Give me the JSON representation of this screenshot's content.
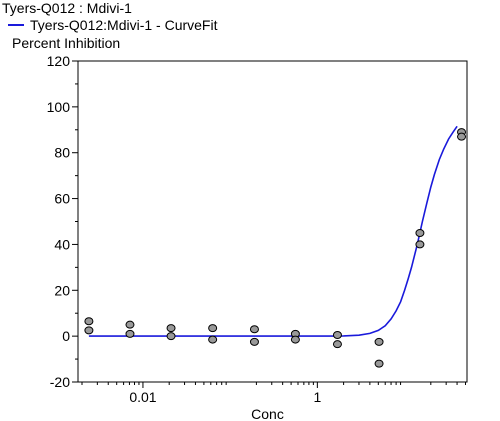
{
  "chart_data": {
    "type": "scatter",
    "title": "Tyers-Q012  :  Mdivi-1",
    "legend": [
      {
        "label": "Tyers-Q012:Mdivi-1 - CurveFit",
        "color": "#1a1adb"
      }
    ],
    "ylabel": "Percent  Inhibition",
    "xlabel": "Conc",
    "x_scale": "log",
    "xlim": [
      0.0018,
      52
    ],
    "ylim": [
      -20,
      120
    ],
    "x_ticks": [
      {
        "value": 0.01,
        "label": "0.01"
      },
      {
        "value": 1,
        "label": "1"
      }
    ],
    "y_ticks": [
      {
        "value": 120,
        "label": "120"
      },
      {
        "value": 100,
        "label": "100"
      },
      {
        "value": 80,
        "label": "80"
      },
      {
        "value": 60,
        "label": "60"
      },
      {
        "value": 40,
        "label": "40"
      },
      {
        "value": 20,
        "label": "20"
      },
      {
        "value": 0,
        "label": "0"
      },
      {
        "value": -20,
        "label": "-20"
      }
    ],
    "series": [
      {
        "name": "Tyers-Q012:Mdivi-1 - CurveFit",
        "kind": "fit-curve",
        "color": "#1a1adb",
        "x": [
          0.0024,
          0.005,
          0.01,
          0.05,
          0.2,
          0.5,
          1,
          1.5,
          2,
          3,
          4,
          5,
          6,
          7,
          8,
          9,
          10,
          11,
          12,
          14,
          16,
          18,
          20,
          22,
          25,
          28,
          32,
          36,
          40
        ],
        "y": [
          0,
          0,
          0,
          0,
          0,
          0,
          0,
          0,
          0.1,
          0.4,
          1.2,
          2.5,
          4.5,
          7.5,
          11,
          15,
          20,
          25,
          30,
          40,
          50,
          58,
          65,
          70.5,
          77,
          81.5,
          86,
          89,
          91.5
        ]
      },
      {
        "name": "",
        "kind": "points",
        "color": "#999999",
        "x": [
          0.0024,
          0.0024,
          0.0071,
          0.0071,
          0.021,
          0.021,
          0.063,
          0.063,
          0.19,
          0.19,
          0.56,
          0.56,
          1.7,
          1.7,
          5.1,
          5.1,
          15,
          15,
          45,
          45
        ],
        "y": [
          6.5,
          2.5,
          5,
          1,
          3.5,
          0,
          3.5,
          -1.5,
          3,
          -2.5,
          1,
          -1.5,
          0.5,
          -3.5,
          -2.5,
          -12,
          45,
          40,
          89,
          87
        ]
      }
    ]
  }
}
